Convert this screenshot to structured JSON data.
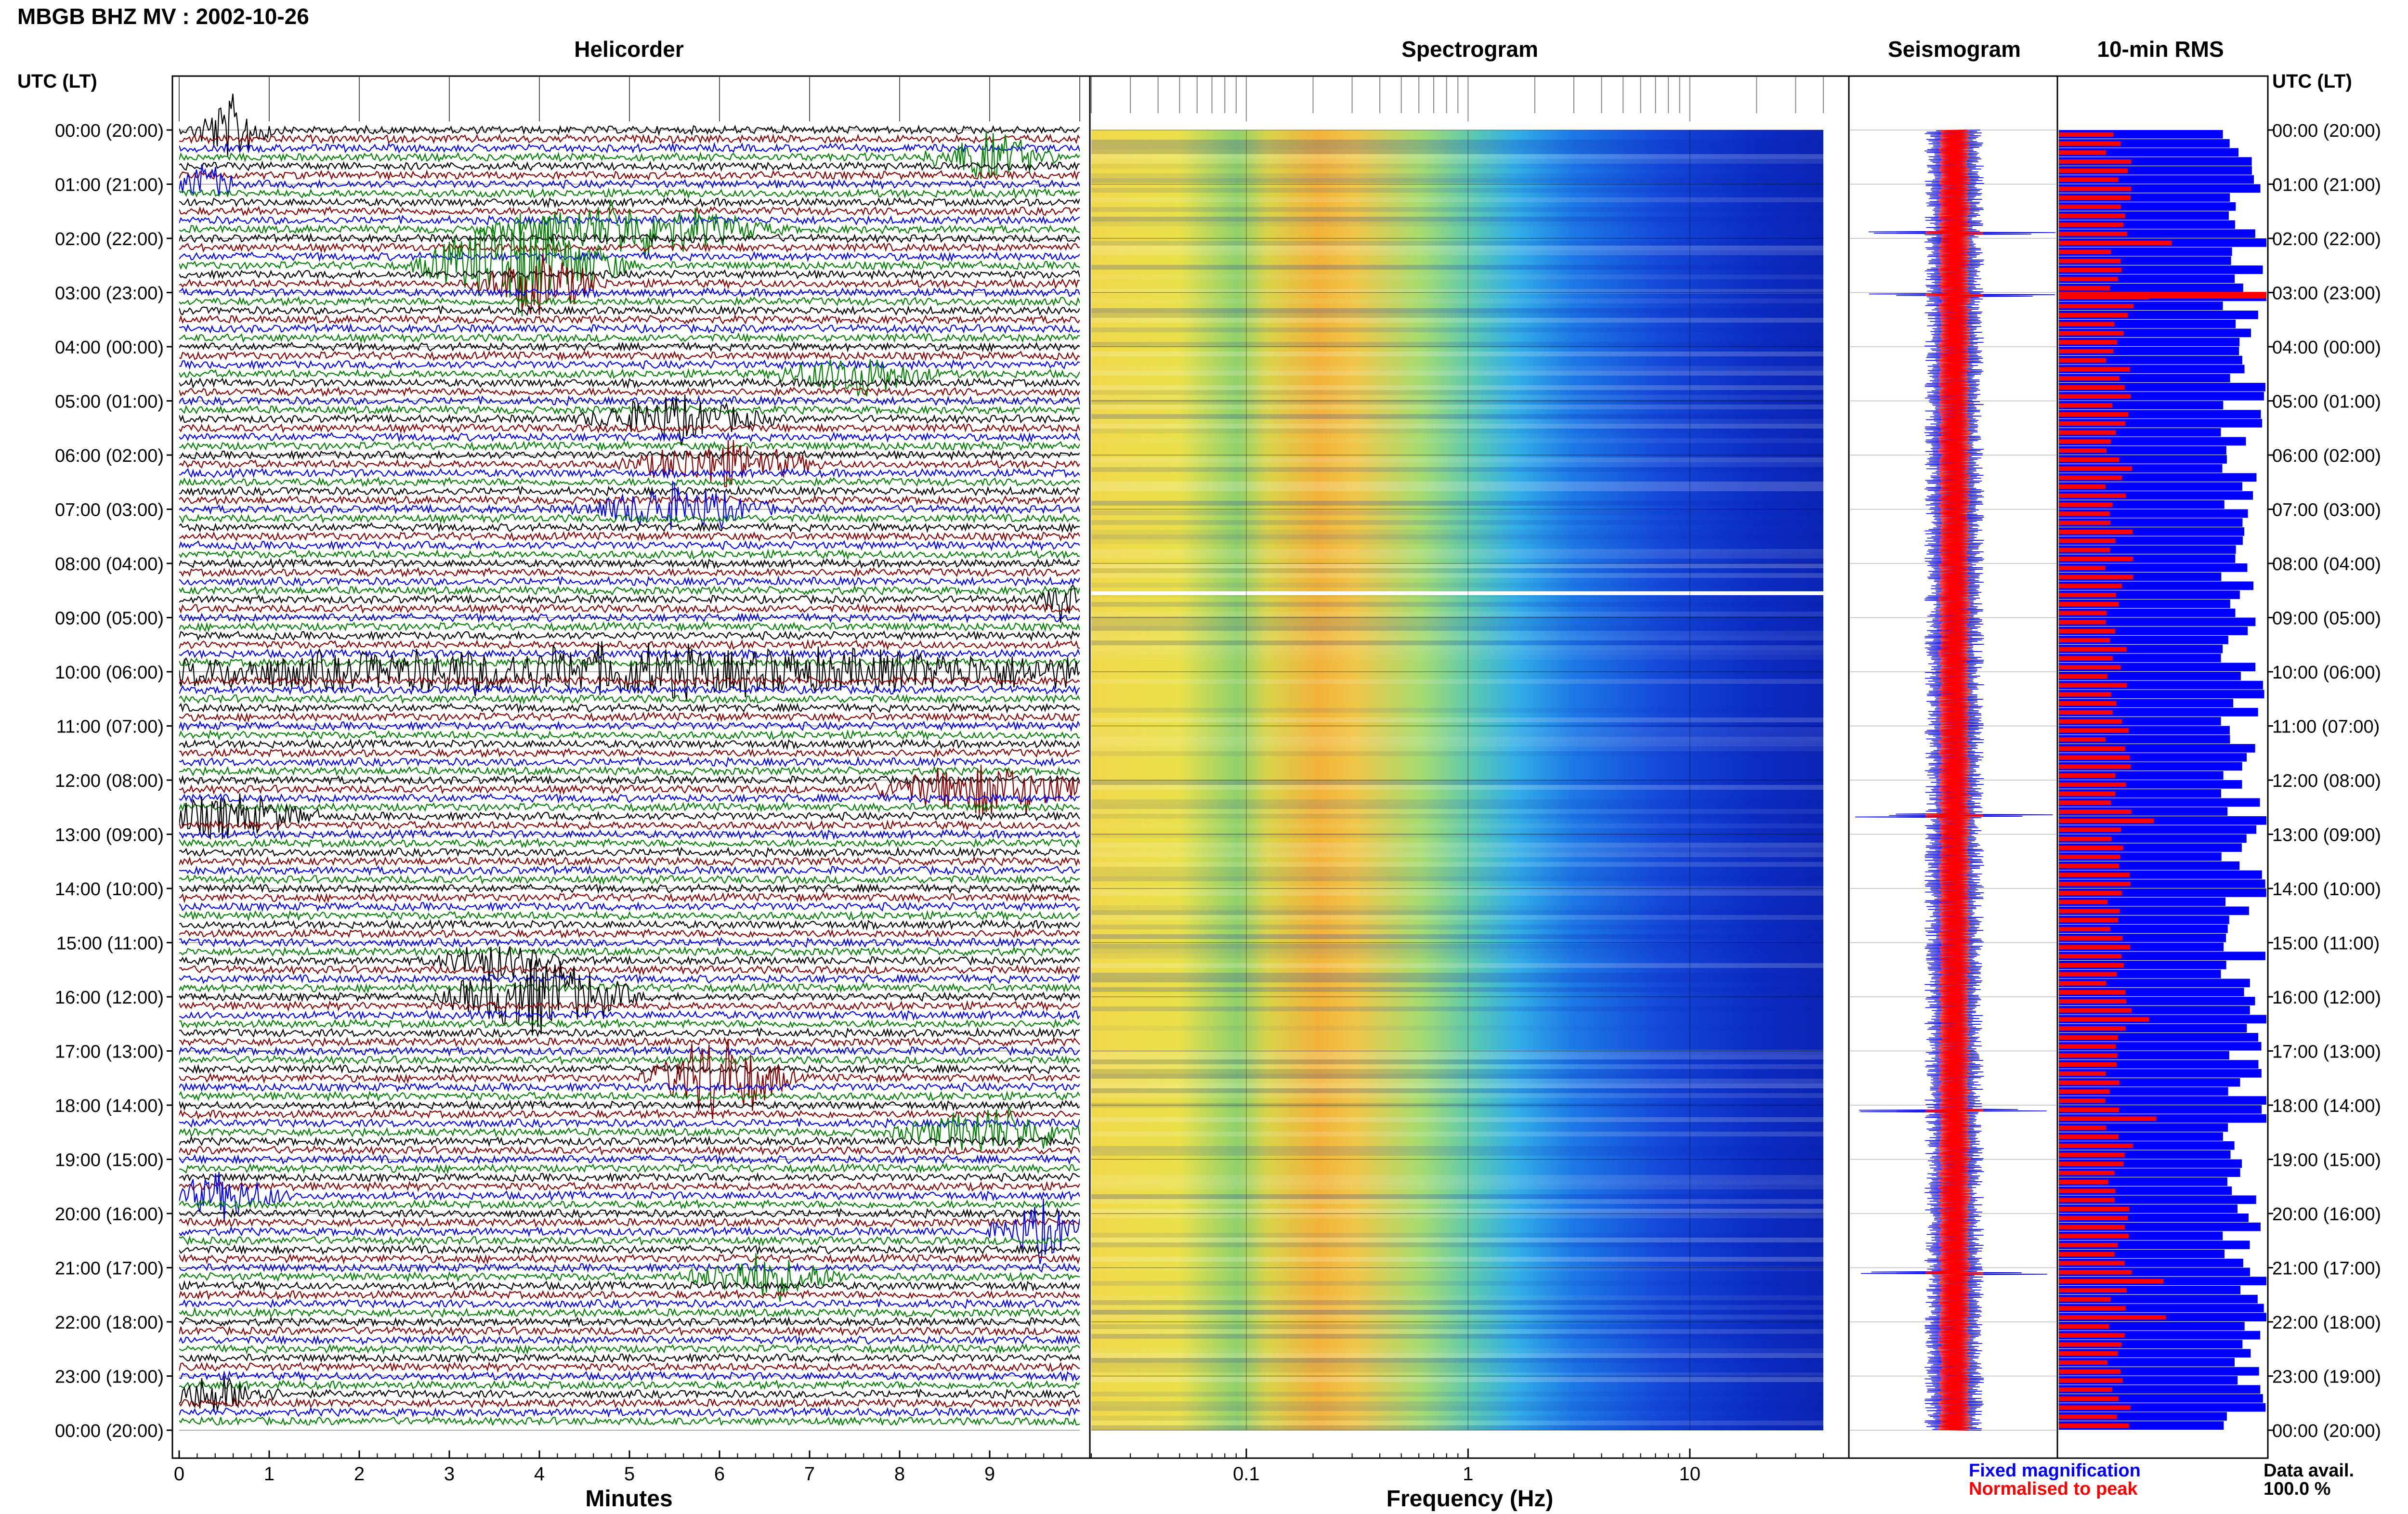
{
  "header": {
    "station_title": "MBGB BHZ MV : 2002-10-26",
    "utc_lt_label": "UTC (LT)"
  },
  "panels": {
    "helicorder": "Helicorder",
    "spectrogram": "Spectrogram",
    "seismogram": "Seismogram",
    "rms": "10-min RMS"
  },
  "axes": {
    "minutes_label": "Minutes",
    "frequency_label": "Frequency (Hz)",
    "minute_ticks": [
      "0",
      "1",
      "2",
      "3",
      "4",
      "5",
      "6",
      "7",
      "8",
      "9"
    ],
    "frequency_ticks": [
      "0.1",
      "1",
      "10"
    ]
  },
  "time_labels": [
    "00:00 (20:00)",
    "01:00 (21:00)",
    "02:00 (22:00)",
    "03:00 (23:00)",
    "04:00 (00:00)",
    "05:00 (01:00)",
    "06:00 (02:00)",
    "07:00 (03:00)",
    "08:00 (04:00)",
    "09:00 (05:00)",
    "10:00 (06:00)",
    "11:00 (07:00)",
    "12:00 (08:00)",
    "13:00 (09:00)",
    "14:00 (10:00)",
    "15:00 (11:00)",
    "16:00 (12:00)",
    "17:00 (13:00)",
    "18:00 (14:00)",
    "19:00 (15:00)",
    "20:00 (16:00)",
    "21:00 (17:00)",
    "22:00 (18:00)",
    "23:00 (19:00)",
    "00:00 (20:00)"
  ],
  "legend": {
    "fixed": "Fixed magnification",
    "normalised": "Normalised to peak",
    "data_avail_label": "Data avail.",
    "data_avail_value": "100.0 %"
  },
  "colors": {
    "trace_cycle": [
      "#000000",
      "#8b0000",
      "#0000ff",
      "#008000"
    ],
    "fixed": "#0000ff",
    "normalised": "#ff0000"
  },
  "chart_data": [
    {
      "type": "line",
      "title": "Helicorder",
      "xlabel": "Minutes",
      "xlim": [
        0,
        10
      ],
      "rows": 144,
      "row_minutes": 10,
      "events": [
        {
          "row": 0,
          "minute": 0.6,
          "amp": 2.2,
          "width": 0.5,
          "color": "#000000"
        },
        {
          "row": 3,
          "minute": 9.0,
          "amp": 1.6,
          "width": 0.8,
          "color": "#8b0000"
        },
        {
          "row": 6,
          "minute": 0.3,
          "amp": 1.3,
          "width": 0.4,
          "color": "#0000ff"
        },
        {
          "row": 11,
          "minute": 5.0,
          "amp": 1.8,
          "width": 1.8,
          "color": "#008000"
        },
        {
          "row": 15,
          "minute": 3.8,
          "amp": 3.5,
          "width": 1.3,
          "color": "#0000ff"
        },
        {
          "row": 17,
          "minute": 4.0,
          "amp": 2.0,
          "width": 0.8,
          "color": "#0000ff"
        },
        {
          "row": 27,
          "minute": 7.5,
          "amp": 1.5,
          "width": 1.0,
          "color": "#008000"
        },
        {
          "row": 32,
          "minute": 5.5,
          "amp": 1.4,
          "width": 1.2,
          "color": "#8b0000"
        },
        {
          "row": 37,
          "minute": 6.0,
          "amp": 1.5,
          "width": 1.2,
          "color": "#0000ff"
        },
        {
          "row": 42,
          "minute": 5.5,
          "amp": 1.5,
          "width": 1.2,
          "color": "#008000"
        },
        {
          "row": 52,
          "minute": 9.8,
          "amp": 1.3,
          "width": 0.3,
          "color": "#000000"
        },
        {
          "row": 60,
          "minute": 5.0,
          "amp": 1.6,
          "width": 10,
          "color": "#000000"
        },
        {
          "row": 73,
          "minute": 9.0,
          "amp": 1.8,
          "width": 1.5,
          "color": "#008000"
        },
        {
          "row": 76,
          "minute": 0.5,
          "amp": 1.4,
          "width": 1.2,
          "color": "#000000"
        },
        {
          "row": 92,
          "minute": 3.5,
          "amp": 1.3,
          "width": 0.8,
          "color": "#8b0000"
        },
        {
          "row": 96,
          "minute": 4.0,
          "amp": 2.8,
          "width": 1.2,
          "color": "#0000ff"
        },
        {
          "row": 105,
          "minute": 6.0,
          "amp": 3.0,
          "width": 0.9,
          "color": "#000000"
        },
        {
          "row": 111,
          "minute": 9.0,
          "amp": 1.6,
          "width": 1.2,
          "color": "#8b0000"
        },
        {
          "row": 118,
          "minute": 0.5,
          "amp": 1.4,
          "width": 0.8,
          "color": "#008000"
        },
        {
          "row": 122,
          "minute": 9.6,
          "amp": 1.8,
          "width": 0.7,
          "color": "#0000ff"
        },
        {
          "row": 127,
          "minute": 6.5,
          "amp": 1.5,
          "width": 1.0,
          "color": "#008000"
        },
        {
          "row": 140,
          "minute": 0.4,
          "amp": 1.3,
          "width": 0.8,
          "color": "#8b0000"
        }
      ]
    },
    {
      "type": "heatmap",
      "title": "Spectrogram",
      "xlabel": "Frequency (Hz)",
      "xscale": "log",
      "xlim": [
        0.02,
        40
      ],
      "ticks": [
        0.1,
        1,
        10
      ],
      "gap_hour": 8.55
    },
    {
      "type": "line",
      "title": "Seismogram",
      "spikes_hours": [
        1.9,
        3.05,
        12.65,
        18.1,
        21.1
      ]
    },
    {
      "type": "bar",
      "title": "10-min RMS",
      "rows": 144,
      "peak_hours": [
        2.0,
        3.05,
        12.7,
        16.4,
        18.1,
        21.1,
        21.9
      ]
    }
  ]
}
